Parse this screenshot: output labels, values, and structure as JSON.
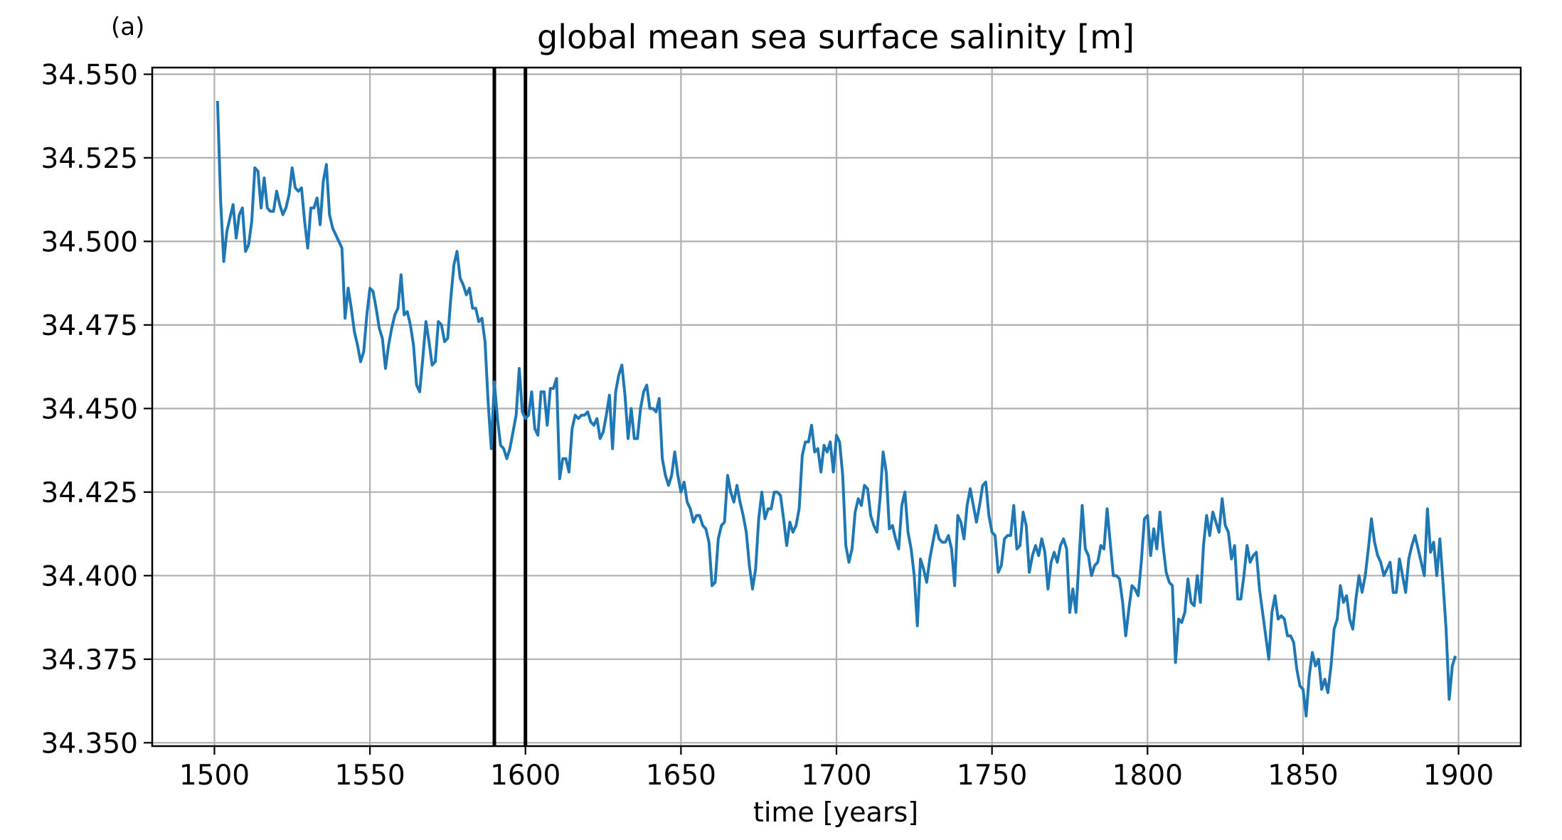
{
  "chart_data": {
    "type": "line",
    "panel_label": "(a)",
    "title": "global mean sea surface salinity [m]",
    "xlabel": "time [years]",
    "ylabel": "",
    "xlim": [
      1480,
      1920
    ],
    "ylim": [
      34.349,
      34.552
    ],
    "xticks": [
      1500,
      1550,
      1600,
      1650,
      1700,
      1750,
      1800,
      1850,
      1900
    ],
    "yticks": [
      34.35,
      34.375,
      34.4,
      34.425,
      34.45,
      34.475,
      34.5,
      34.525,
      34.55
    ],
    "xtick_labels": [
      "1500",
      "1550",
      "1600",
      "1650",
      "1700",
      "1750",
      "1800",
      "1850",
      "1900"
    ],
    "ytick_labels": [
      "34.350",
      "34.375",
      "34.400",
      "34.425",
      "34.450",
      "34.475",
      "34.500",
      "34.525",
      "34.550"
    ],
    "grid": true,
    "series_color": "#1f77b4",
    "vertical_lines": [
      1590,
      1600
    ],
    "vertical_line_color": "#000000",
    "series": [
      {
        "x_start": 1501,
        "x_step": 1,
        "values": [
          34.542,
          34.512,
          34.494,
          34.503,
          34.507,
          34.511,
          34.501,
          34.508,
          34.51,
          34.497,
          34.499,
          34.506,
          34.522,
          34.521,
          34.51,
          34.519,
          34.51,
          34.509,
          34.509,
          34.515,
          34.511,
          34.508,
          34.51,
          34.514,
          34.522,
          34.516,
          34.515,
          34.516,
          34.506,
          34.498,
          34.51,
          34.51,
          34.513,
          34.505,
          34.518,
          34.523,
          34.508,
          34.504,
          34.502,
          34.5,
          34.498,
          34.477,
          34.486,
          34.48,
          34.473,
          34.469,
          34.464,
          34.467,
          34.478,
          34.486,
          34.485,
          34.48,
          34.474,
          34.471,
          34.462,
          34.469,
          34.474,
          34.478,
          34.48,
          34.49,
          34.478,
          34.479,
          34.475,
          34.469,
          34.457,
          34.455,
          34.465,
          34.476,
          34.47,
          34.463,
          34.464,
          34.476,
          34.475,
          34.47,
          34.471,
          34.483,
          34.493,
          34.497,
          34.489,
          34.487,
          34.484,
          34.486,
          34.48,
          34.48,
          34.476,
          34.477,
          34.47,
          34.452,
          34.438,
          34.458,
          34.447,
          34.439,
          34.438,
          34.435,
          34.438,
          34.443,
          34.448,
          34.462,
          34.449,
          34.447,
          34.448,
          34.455,
          34.444,
          34.442,
          34.455,
          34.455,
          34.445,
          34.456,
          34.456,
          34.459,
          34.429,
          34.435,
          34.435,
          34.431,
          34.444,
          34.448,
          34.447,
          34.448,
          34.448,
          34.449,
          34.446,
          34.445,
          34.447,
          34.441,
          34.443,
          34.448,
          34.454,
          34.438,
          34.455,
          34.46,
          34.463,
          34.454,
          34.441,
          34.45,
          34.441,
          34.441,
          34.45,
          34.455,
          34.457,
          34.45,
          34.45,
          34.449,
          34.453,
          34.435,
          34.43,
          34.427,
          34.43,
          34.437,
          34.43,
          34.425,
          34.428,
          34.422,
          34.42,
          34.416,
          34.418,
          34.418,
          34.415,
          34.414,
          34.41,
          34.397,
          34.398,
          34.411,
          34.415,
          34.416,
          34.43,
          34.425,
          34.422,
          34.427,
          34.422,
          34.418,
          34.413,
          34.403,
          34.396,
          34.402,
          34.417,
          34.425,
          34.417,
          34.42,
          34.42,
          34.425,
          34.425,
          34.424,
          34.417,
          34.409,
          34.416,
          34.413,
          34.415,
          34.42,
          34.436,
          34.44,
          34.44,
          34.445,
          34.437,
          34.438,
          34.431,
          34.439,
          34.437,
          34.44,
          34.431,
          34.442,
          34.44,
          34.43,
          34.409,
          34.404,
          34.408,
          34.419,
          34.423,
          34.421,
          34.427,
          34.426,
          34.418,
          34.415,
          34.413,
          34.423,
          34.437,
          34.431,
          34.414,
          34.415,
          34.411,
          34.408,
          34.421,
          34.425,
          34.413,
          34.408,
          34.4,
          34.385,
          34.405,
          34.402,
          34.398,
          34.405,
          34.41,
          34.415,
          34.411,
          34.41,
          34.41,
          34.412,
          34.408,
          34.397,
          34.418,
          34.416,
          34.411,
          34.421,
          34.426,
          34.421,
          34.416,
          34.421,
          34.427,
          34.428,
          34.418,
          34.413,
          34.412,
          34.401,
          34.403,
          34.411,
          34.412,
          34.412,
          34.421,
          34.408,
          34.409,
          34.419,
          34.415,
          34.401,
          34.406,
          34.409,
          34.406,
          34.411,
          34.407,
          34.396,
          34.404,
          34.407,
          34.404,
          34.409,
          34.411,
          34.408,
          34.389,
          34.396,
          34.389,
          34.405,
          34.421,
          34.408,
          34.406,
          34.4,
          34.403,
          34.404,
          34.409,
          34.408,
          34.42,
          34.41,
          34.4,
          34.4,
          34.399,
          34.392,
          34.382,
          34.39,
          34.397,
          34.396,
          34.394,
          34.404,
          34.417,
          34.418,
          34.406,
          34.414,
          34.408,
          34.419,
          34.409,
          34.401,
          34.398,
          34.397,
          34.374,
          34.387,
          34.386,
          34.389,
          34.399,
          34.392,
          34.391,
          34.4,
          34.392,
          34.409,
          34.418,
          34.412,
          34.419,
          34.416,
          34.413,
          34.423,
          34.415,
          34.413,
          34.405,
          34.409,
          34.393,
          34.393,
          34.4,
          34.409,
          34.404,
          34.406,
          34.407,
          34.396,
          34.389,
          34.382,
          34.375,
          34.389,
          34.394,
          34.387,
          34.388,
          34.387,
          34.382,
          34.382,
          34.38,
          34.372,
          34.367,
          34.366,
          34.358,
          34.37,
          34.377,
          34.373,
          34.375,
          34.366,
          34.369,
          34.365,
          34.373,
          34.384,
          34.387,
          34.397,
          34.392,
          34.394,
          34.387,
          34.384,
          34.393,
          34.4,
          34.395,
          34.4,
          34.408,
          34.417,
          34.41,
          34.406,
          34.404,
          34.4,
          34.402,
          34.404,
          34.395,
          34.395,
          34.405,
          34.4,
          34.395,
          34.405,
          34.409,
          34.412,
          34.408,
          34.404,
          34.4,
          34.42,
          34.407,
          34.41,
          34.4,
          34.411,
          34.398,
          34.384,
          34.363,
          34.373,
          34.376
        ]
      }
    ]
  }
}
